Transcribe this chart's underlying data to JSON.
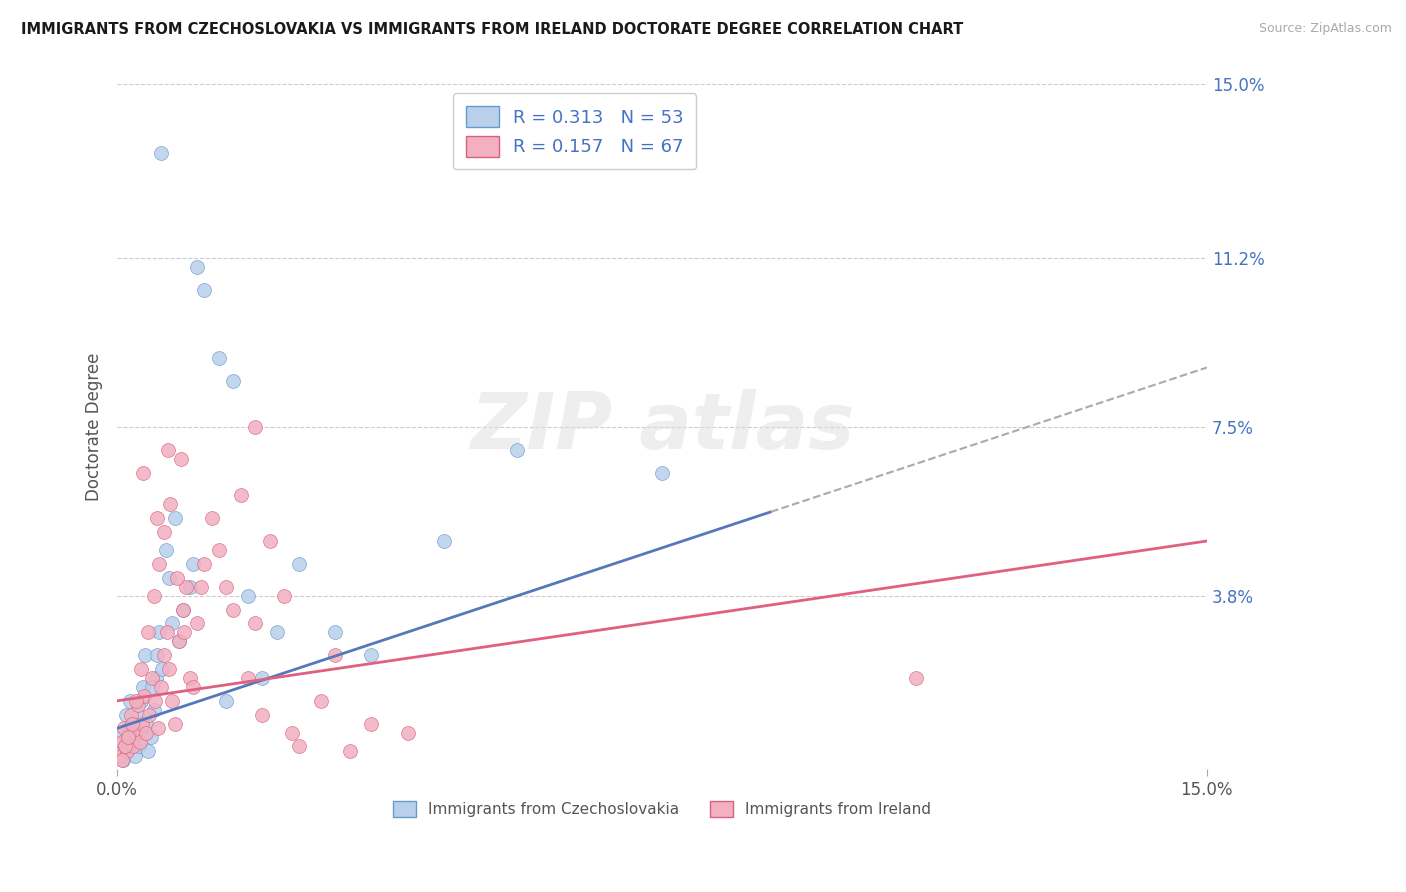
{
  "title": "IMMIGRANTS FROM CZECHOSLOVAKIA VS IMMIGRANTS FROM IRELAND DOCTORATE DEGREE CORRELATION CHART",
  "source": "Source: ZipAtlas.com",
  "ylabel": "Doctorate Degree",
  "xlim": [
    0.0,
    15.0
  ],
  "ylim": [
    0.0,
    15.0
  ],
  "x_tick_positions": [
    0.0,
    15.0
  ],
  "x_tick_labels": [
    "0.0%",
    "15.0%"
  ],
  "y_tick_positions": [
    3.8,
    7.5,
    11.2,
    15.0
  ],
  "y_tick_labels": [
    "3.8%",
    "7.5%",
    "11.2%",
    "15.0%"
  ],
  "grid_color": "#cccccc",
  "background_color": "#ffffff",
  "series": [
    {
      "name": "Czechoslovakia",
      "R": 0.313,
      "N": 53,
      "fill_color": "#b8d0ea",
      "edge_color": "#6699cc",
      "trend_color": "#5577bb",
      "trend_solid_end_x": 9.0,
      "trend_x0": 0.0,
      "trend_y0": 0.9,
      "trend_x1": 15.0,
      "trend_y1": 8.8,
      "x": [
        0.05,
        0.07,
        0.1,
        0.12,
        0.14,
        0.16,
        0.18,
        0.2,
        0.22,
        0.24,
        0.26,
        0.28,
        0.3,
        0.32,
        0.35,
        0.38,
        0.4,
        0.43,
        0.46,
        0.5,
        0.54,
        0.58,
        0.62,
        0.67,
        0.72,
        0.8,
        0.9,
        1.0,
        1.1,
        1.2,
        1.4,
        1.6,
        1.8,
        2.0,
        2.5,
        3.0,
        3.5,
        4.5,
        0.08,
        0.13,
        0.17,
        0.23,
        0.33,
        0.48,
        0.55,
        0.75,
        0.85,
        1.05,
        1.5,
        2.2,
        5.5,
        7.5,
        0.6
      ],
      "y": [
        0.3,
        0.8,
        0.5,
        1.2,
        0.4,
        0.9,
        1.5,
        0.6,
        1.0,
        0.3,
        0.8,
        1.2,
        0.5,
        0.9,
        1.8,
        2.5,
        1.0,
        0.4,
        0.7,
        1.3,
        2.0,
        3.0,
        2.2,
        4.8,
        4.2,
        5.5,
        3.5,
        4.0,
        11.0,
        10.5,
        9.0,
        8.5,
        3.8,
        2.0,
        4.5,
        3.0,
        2.5,
        5.0,
        0.2,
        0.5,
        0.7,
        1.0,
        1.5,
        1.8,
        2.5,
        3.2,
        2.8,
        4.5,
        1.5,
        3.0,
        7.0,
        6.5,
        13.5
      ]
    },
    {
      "name": "Ireland",
      "R": 0.157,
      "N": 67,
      "fill_color": "#f2b0c0",
      "edge_color": "#d96080",
      "trend_color": "#e06080",
      "trend_x0": 0.0,
      "trend_y0": 1.5,
      "trend_x1": 15.0,
      "trend_y1": 5.0,
      "x": [
        0.04,
        0.07,
        0.1,
        0.13,
        0.16,
        0.19,
        0.22,
        0.25,
        0.28,
        0.31,
        0.34,
        0.37,
        0.4,
        0.44,
        0.48,
        0.52,
        0.56,
        0.6,
        0.64,
        0.68,
        0.72,
        0.76,
        0.8,
        0.85,
        0.9,
        0.95,
        1.0,
        1.1,
        1.2,
        1.3,
        1.5,
        1.7,
        1.9,
        2.1,
        2.3,
        2.5,
        2.8,
        3.0,
        3.5,
        4.0,
        0.06,
        0.11,
        0.15,
        0.2,
        0.26,
        0.33,
        0.42,
        0.5,
        0.58,
        0.65,
        0.73,
        0.82,
        0.92,
        1.05,
        1.4,
        1.6,
        1.8,
        2.0,
        2.4,
        3.2,
        11.0,
        0.35,
        0.55,
        0.7,
        0.88,
        1.15,
        1.9
      ],
      "y": [
        0.3,
        0.6,
        0.9,
        0.4,
        0.7,
        1.2,
        0.5,
        0.8,
        1.4,
        0.6,
        1.0,
        1.6,
        0.8,
        1.2,
        2.0,
        1.5,
        0.9,
        1.8,
        2.5,
        3.0,
        2.2,
        1.5,
        1.0,
        2.8,
        3.5,
        4.0,
        2.0,
        3.2,
        4.5,
        5.5,
        4.0,
        6.0,
        7.5,
        5.0,
        3.8,
        0.5,
        1.5,
        2.5,
        1.0,
        0.8,
        0.2,
        0.5,
        0.7,
        1.0,
        1.5,
        2.2,
        3.0,
        3.8,
        4.5,
        5.2,
        5.8,
        4.2,
        3.0,
        1.8,
        4.8,
        3.5,
        2.0,
        1.2,
        0.8,
        0.4,
        2.0,
        6.5,
        5.5,
        7.0,
        6.8,
        4.0,
        3.2
      ]
    }
  ]
}
